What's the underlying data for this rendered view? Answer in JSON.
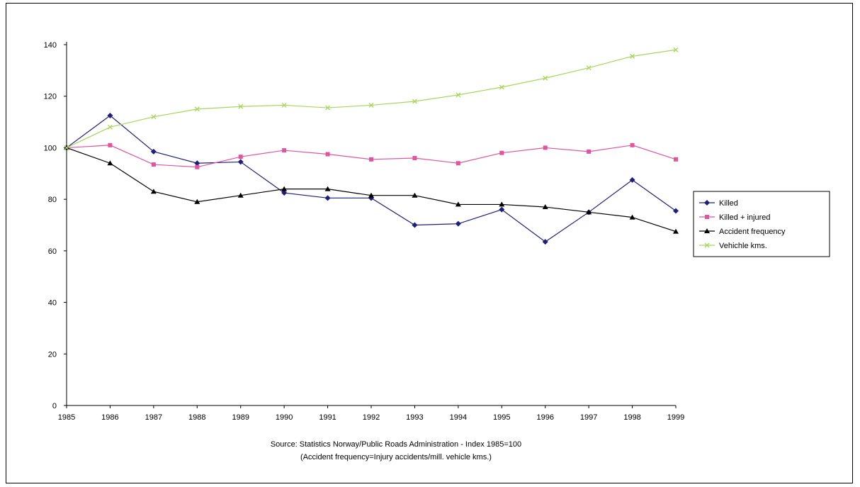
{
  "chart_data": {
    "type": "line",
    "x": [
      "1985",
      "1986",
      "1987",
      "1988",
      "1989",
      "1990",
      "1991",
      "1992",
      "1993",
      "1994",
      "1995",
      "1996",
      "1997",
      "1998",
      "1999"
    ],
    "ylim": [
      0,
      140
    ],
    "yticks": [
      "0",
      "20",
      "40",
      "60",
      "80",
      "100",
      "120",
      "140"
    ],
    "grid": false,
    "legend_position": "right",
    "series": [
      {
        "name": "Killed",
        "color": "#1f1f7a",
        "marker": "diamond",
        "values": [
          100,
          112.5,
          98.5,
          94,
          94.5,
          82.5,
          80.5,
          80.5,
          70,
          70.5,
          76,
          63.5,
          75,
          87.5,
          75.5
        ]
      },
      {
        "name": "Killed + injured",
        "color": "#e0559b",
        "marker": "square",
        "values": [
          100,
          101,
          93.5,
          92.5,
          96.5,
          99,
          97.5,
          95.5,
          96,
          94,
          98,
          100,
          98.5,
          101,
          95.5
        ]
      },
      {
        "name": "Accident frequency",
        "color": "#000000",
        "marker": "triangle",
        "values": [
          100,
          94,
          83,
          79,
          81.5,
          84,
          84,
          81.5,
          81.5,
          78,
          78,
          77,
          75,
          73,
          67.5
        ]
      },
      {
        "name": "Vehichle kms.",
        "color": "#a8d65c",
        "marker": "x",
        "values": [
          100,
          108,
          112,
          115,
          116,
          116.5,
          115.5,
          116.5,
          118,
          120.5,
          123.5,
          127,
          131,
          135.5,
          138
        ]
      }
    ]
  },
  "caption": {
    "line1": "Source: Statistics Norway/Public Roads Administration - Index 1985=100",
    "line2": "(Accident frequency=Injury accidents/mill. vehicle kms.)"
  }
}
